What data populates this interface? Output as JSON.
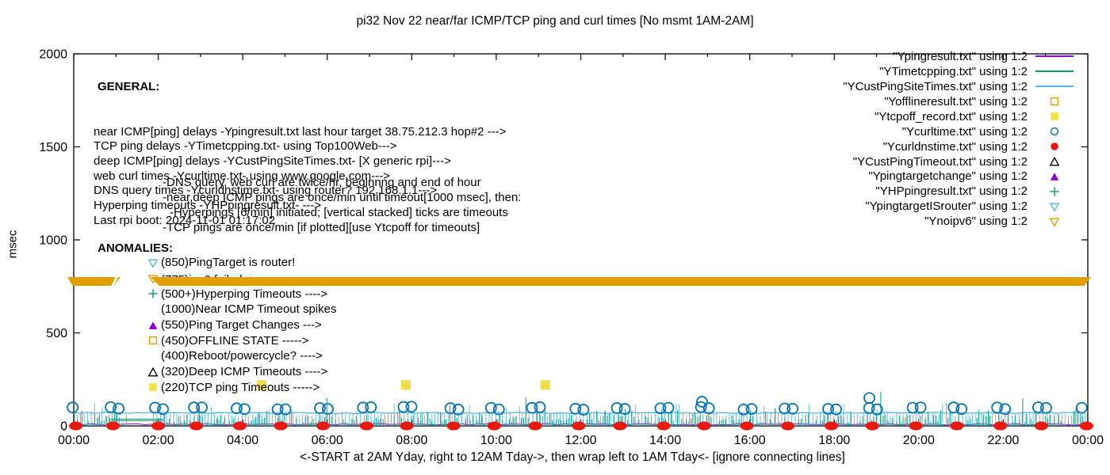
{
  "title": "pi32 Nov 22  near/far ICMP/TCP ping and curl times [No msmt 1AM-2AM]",
  "axes": {
    "ylabel": "msec",
    "xlabel": "<-START at 2AM Yday, right to 12AM Tday->, then wrap left to 1AM Tday<- [ignore connecting lines]",
    "y_ticks": [
      0,
      500,
      1000,
      1500,
      2000
    ],
    "ylim": [
      0,
      2000
    ],
    "x_ticks": [
      "00:00",
      "02:00",
      "04:00",
      "06:00",
      "08:00",
      "10:00",
      "12:00",
      "14:00",
      "16:00",
      "18:00",
      "20:00",
      "22:00",
      "00:00"
    ],
    "x_range_hours": [
      0,
      24
    ]
  },
  "general_block": {
    "heading": "GENERAL:",
    "lines": [
      "near ICMP[ping] delays -Ypingresult.txt last hour target 38.75.212.3 hop#2 --->",
      "TCP ping delays -YTimetcpping.txt- using Top100Web--->",
      "deep ICMP[ping] delays -YCustPingSiteTimes.txt- [X generic rpi]--->",
      "web curl times -Ycurltime.txt- using www.google.com--->",
      "DNS query times -Ycurldnstime.txt- using router? 192.168.1.1--->",
      "Hyperping timeouts -YHPpingresult.txt- --->",
      "Last rpi boot: 2024-11-01 01:17:02"
    ],
    "indented_lines": [
      {
        "text": "-DNS query, web curl are twice/hr, beginnng and end of hour",
        "extra_indent": false
      },
      {
        "text": "-near,deep ICMP pings are once/min until timeout[1000 msec], then:",
        "extra_indent": false
      },
      {
        "text": "-Hyperpings [6/min] initiated; [vertical stacked] ticks are timeouts",
        "extra_indent": true
      },
      {
        "text": "-TCP pings are once/min [if plotted][use Ytcpoff for timeouts]",
        "extra_indent": false
      }
    ]
  },
  "anomalies_block": {
    "heading": "ANOMALIES:",
    "items": [
      {
        "marker": "triangle-down-open",
        "color": "#56B4E9",
        "text": "(850)PingTarget is router!",
        "behind_band": false
      },
      {
        "marker": "triangle-down-open",
        "color": "#E69F00",
        "text": "(775)ipv6 failed ->",
        "behind_band": true
      },
      {
        "marker": "plus",
        "color": "#009E73",
        "text": "(500+)Hyperping Timeouts ---->",
        "behind_band": false
      },
      {
        "marker": "none",
        "color": "",
        "text": "(1000)Near ICMP Timeout spikes",
        "behind_band": false
      },
      {
        "marker": "triangle-up-filled",
        "color": "#9400D3",
        "text": "(550)Ping Target Changes --->",
        "behind_band": false
      },
      {
        "marker": "square-open",
        "color": "#E69F00",
        "text": "(450)OFFLINE STATE ----->",
        "behind_band": false
      },
      {
        "marker": "none",
        "color": "",
        "text": "(400)Reboot/powercycle? ---->",
        "behind_band": false
      },
      {
        "marker": "triangle-up-open",
        "color": "#000000",
        "text": "(320)Deep ICMP Timeouts ---->",
        "behind_band": false
      },
      {
        "marker": "square-filled",
        "color": "#F0E442",
        "text": "(220)TCP ping Timeouts ----->",
        "behind_band": false
      }
    ]
  },
  "legend": [
    {
      "label": "\"Ypingresult.txt\" using 1:2",
      "swatch": "line",
      "color": "#9400D3"
    },
    {
      "label": "\"YTimetcpping.txt\" using 1:2",
      "swatch": "line",
      "color": "#009E73"
    },
    {
      "label": "\"YCustPingSiteTimes.txt\" using 1:2",
      "swatch": "line",
      "color": "#56B4E9"
    },
    {
      "label": "\"Yofflineresult.txt\" using 1:2",
      "swatch": "square-open",
      "color": "#E69F00"
    },
    {
      "label": "\"Ytcpoff_record.txt\" using 1:2",
      "swatch": "square-filled",
      "color": "#F0E442"
    },
    {
      "label": "\"Ycurltime.txt\" using 1:2",
      "swatch": "circle-open",
      "color": "#0072B2"
    },
    {
      "label": "\"Ycurldnstime.txt\" using 1:2",
      "swatch": "circle-filled",
      "color": "#E8190F"
    },
    {
      "label": "\"YCustPingTimeout.txt\" using 1:2",
      "swatch": "triangle-up-open",
      "color": "#000000"
    },
    {
      "label": "\"Ypingtargetchange\" using 1:2",
      "swatch": "triangle-up-filled",
      "color": "#9400D3"
    },
    {
      "label": "\"YHPpingresult.txt\" using 1:2",
      "swatch": "plus",
      "color": "#009E73"
    },
    {
      "label": "\"YpingtargetISrouter\" using 1:2",
      "swatch": "triangle-down-open",
      "color": "#56B4E9"
    },
    {
      "label": "\"Ynoipv6\" using 1:2",
      "swatch": "triangle-down-open",
      "color": "#E69F00"
    }
  ],
  "chart_data": {
    "type": "line",
    "title": "pi32 Nov 22  near/far ICMP/TCP ping and curl times [No msmt 1AM-2AM]",
    "xlabel": "<-START at 2AM Yday, right to 12AM Tday->, then wrap left to 1AM Tday<- [ignore connecting lines]",
    "ylabel": "msec",
    "ylim": [
      0,
      2000
    ],
    "x_hours": [
      0,
      24
    ],
    "measurement_gap_hours": [
      1.07,
      1.82
    ],
    "series": [
      {
        "name": "Ypingresult.txt",
        "style": "line",
        "color": "#9400D3",
        "summary_msec": {
          "baseline": 8,
          "jitter": 4
        }
      },
      {
        "name": "YTimetcpping.txt",
        "style": "impulses",
        "color": "#009E73",
        "summary_msec": {
          "min": 3,
          "typical_max": 95
        },
        "notable_spikes": [
          {
            "hour": 2.97,
            "msec": 95
          },
          {
            "hour": 5.99,
            "msec": 150
          },
          {
            "hour": 8.9,
            "msec": 110
          },
          {
            "hour": 10.7,
            "msec": 153
          },
          {
            "hour": 13.92,
            "msec": 89
          },
          {
            "hour": 16.6,
            "msec": 95
          },
          {
            "hour": 19.1,
            "msec": 183
          },
          {
            "hour": 22.46,
            "msec": 148
          }
        ],
        "connector_lines_msec": [
          {
            "hours": [
              0.88,
              2.12
            ],
            "msec": 28
          },
          {
            "hours": [
              0.88,
              2.12
            ],
            "msec": 36
          }
        ]
      },
      {
        "name": "YCustPingSiteTimes.txt",
        "style": "line+impulses",
        "color": "#56B4E9",
        "summary_msec": {
          "baseline": 70,
          "spikes_to": 125
        }
      },
      {
        "name": "Yofflineresult.txt",
        "style": "square-open",
        "color": "#E69F00",
        "points": []
      },
      {
        "name": "Ytcpoff_record.txt",
        "style": "square-filled",
        "color": "#EDDE4C",
        "points": [
          {
            "hour": 4.45,
            "msec": 220
          },
          {
            "hour": 7.86,
            "msec": 220
          },
          {
            "hour": 11.16,
            "msec": 220
          }
        ]
      },
      {
        "name": "Ycurltime.txt",
        "style": "circle-open",
        "color": "#0072B2",
        "summary": "two curl samples per hour, ~85-105 msec",
        "pair_hours": [
          0.05,
          0.95,
          2.0,
          2.92,
          3.93,
          4.9,
          5.9,
          6.92,
          7.88,
          8.99,
          9.95,
          10.92,
          11.95,
          12.93,
          13.96,
          14.92,
          15.93,
          16.9,
          17.93,
          18.9,
          19.93,
          20.9,
          21.93,
          22.9,
          23.93
        ],
        "typical_msec": 95,
        "outliers": [
          {
            "hour": 14.87,
            "msec": 130
          },
          {
            "hour": 18.83,
            "msec": 150
          }
        ]
      },
      {
        "name": "Ycurldnstime.txt",
        "style": "circle-filled",
        "color": "#E8190F",
        "summary": "hourly DNS query marks at ~0 msec",
        "hours": [
          0.05,
          0.93,
          2.0,
          2.9,
          3.93,
          4.9,
          5.9,
          6.93,
          7.88,
          8.99,
          9.95,
          10.92,
          11.95,
          12.93,
          13.96,
          14.92,
          15.93,
          16.9,
          17.93,
          18.9,
          19.93,
          20.9,
          21.93,
          22.9,
          23.97
        ],
        "msec": 0
      },
      {
        "name": "YCustPingTimeout.txt",
        "style": "triangle-up-open",
        "color": "#000000",
        "points": []
      },
      {
        "name": "Ypingtargetchange",
        "style": "triangle-up-filled",
        "color": "#9400D3",
        "points": []
      },
      {
        "name": "YHPpingresult.txt",
        "style": "plus",
        "color": "#009E73",
        "points": []
      },
      {
        "name": "YpingtargetISrouter",
        "style": "triangle-down-open",
        "color": "#56B4E9",
        "points": []
      },
      {
        "name": "Ynoipv6",
        "style": "triangle-down-open-band",
        "color": "#DFA000",
        "band_msec": 775,
        "band_segments_hours": [
          [
            -0.15,
            1.11
          ],
          [
            1.82,
            24.08
          ]
        ]
      }
    ]
  }
}
